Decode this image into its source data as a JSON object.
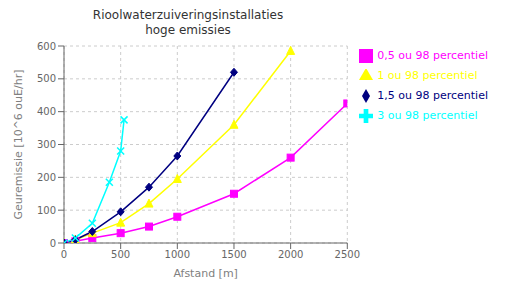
{
  "chart_data": {
    "type": "line",
    "title": "Rioolwaterzuiveringsinstallaties\nhoge emissies",
    "xlabel": "Afstand [m]",
    "ylabel": "Geuremissie [10^6 ouE/hr]",
    "xlim": [
      0,
      2500
    ],
    "ylim": [
      0,
      600
    ],
    "xticks": [
      0,
      500,
      1000,
      1500,
      2000,
      2500
    ],
    "yticks": [
      0,
      100,
      200,
      300,
      400,
      500,
      600
    ],
    "grid": true,
    "legend": "right",
    "series": [
      {
        "name": "0,5 ou 98 percentiel",
        "color": "#ff00ff",
        "marker": "square",
        "x": [
          0,
          100,
          250,
          500,
          750,
          1000,
          1500,
          2000,
          2500
        ],
        "values": [
          0,
          5,
          15,
          30,
          50,
          80,
          150,
          260,
          425
        ]
      },
      {
        "name": "1 ou 98 percentiel",
        "color": "#ffff00",
        "marker": "triangle",
        "x": [
          0,
          100,
          250,
          500,
          750,
          1000,
          1500,
          2000
        ],
        "values": [
          0,
          10,
          30,
          62,
          120,
          195,
          360,
          585
        ]
      },
      {
        "name": "1,5 ou 98 percentiel",
        "color": "#000080",
        "marker": "diamond",
        "x": [
          0,
          100,
          250,
          500,
          750,
          1000,
          1500
        ],
        "values": [
          0,
          10,
          35,
          95,
          170,
          265,
          520
        ]
      },
      {
        "name": "3 ou 98 percentiel",
        "color": "#00ffff",
        "marker": "x",
        "x": [
          0,
          100,
          250,
          400,
          500,
          530
        ],
        "values": [
          0,
          15,
          60,
          185,
          280,
          375
        ]
      }
    ]
  }
}
